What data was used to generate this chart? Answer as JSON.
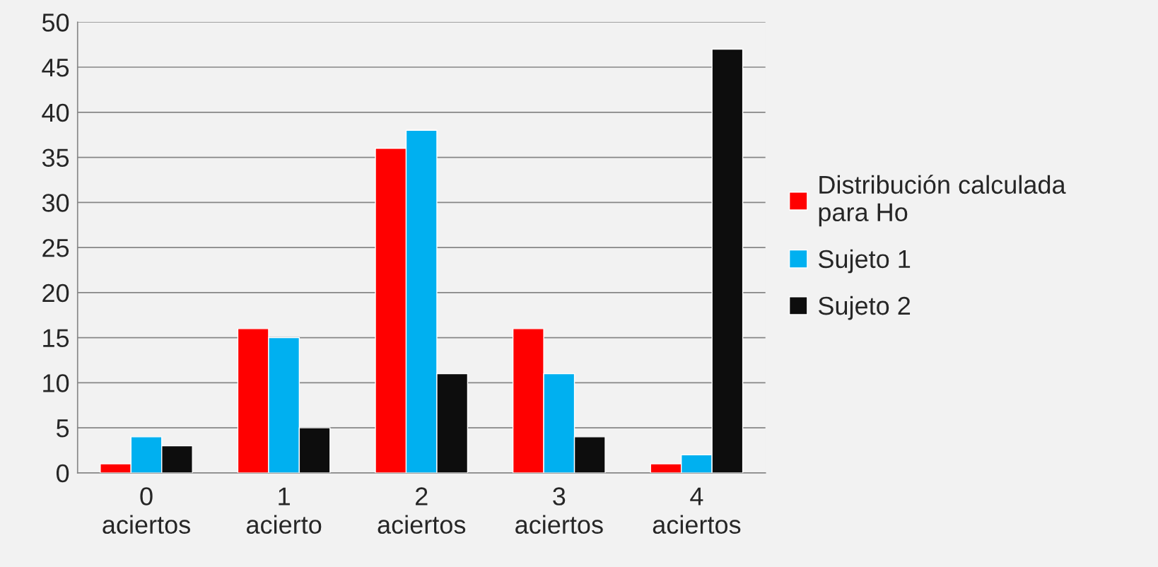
{
  "chart_data": {
    "type": "bar",
    "categories": [
      "0\naciertos",
      "1\nacierto",
      "2\naciertos",
      "3\naciertos",
      "4\naciertos"
    ],
    "series": [
      {
        "name": "Distribución calculada\npara Ho",
        "color": "#ff0000",
        "values": [
          1,
          16,
          36,
          16,
          1
        ]
      },
      {
        "name": "Sujeto 1",
        "color": "#00b0f0",
        "values": [
          4,
          15,
          38,
          11,
          2
        ]
      },
      {
        "name": "Sujeto 2",
        "color": "#0d0d0d",
        "values": [
          3,
          5,
          11,
          4,
          47
        ]
      }
    ],
    "ylim": [
      0,
      50
    ],
    "yticks": [
      0,
      5,
      10,
      15,
      20,
      25,
      30,
      35,
      40,
      45,
      50
    ],
    "grid": "y",
    "legend": "right"
  }
}
